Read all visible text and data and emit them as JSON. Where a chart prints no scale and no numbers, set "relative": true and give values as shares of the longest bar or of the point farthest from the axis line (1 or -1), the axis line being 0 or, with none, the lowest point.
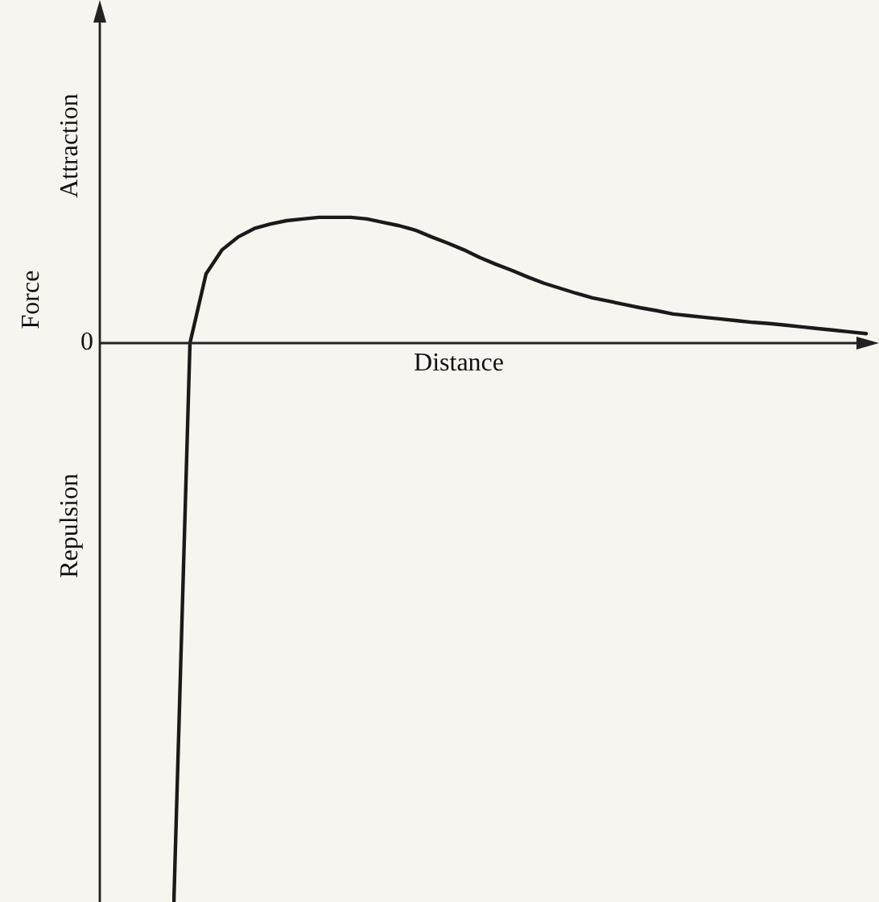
{
  "chart_data": {
    "type": "line",
    "relative": true,
    "xlabel": "Distance",
    "ylabel": "Force",
    "annotations": [
      "Attraction",
      "Repulsion",
      "0"
    ],
    "categories": [
      null,
      null,
      null,
      null,
      null,
      null,
      null,
      null,
      null,
      null,
      null,
      null,
      null,
      null,
      null,
      null,
      null,
      null,
      null,
      null,
      null,
      null,
      null,
      null,
      null,
      null,
      null,
      null,
      null,
      null,
      null,
      null,
      null,
      null,
      null,
      null,
      null,
      null,
      null,
      null,
      null,
      null,
      null,
      null
    ],
    "marker": "none",
    "line_style": "solid",
    "series": [
      {
        "color": "#1a1a1a",
        "values": [
          -1,
          0,
          0.124,
          0.167,
          0.19,
          0.205,
          0.213,
          0.219,
          0.222,
          0.225,
          0.225,
          0.225,
          0.222,
          0.216,
          0.21,
          0.202,
          0.19,
          0.179,
          0.167,
          0.153,
          0.141,
          0.13,
          0.118,
          0.107,
          0.098,
          0.089,
          0.081,
          0.075,
          0.069,
          0.063,
          0.058,
          0.052,
          0.049,
          0.046,
          0.043,
          0.04,
          0.037,
          0.035,
          0.032,
          0.029,
          0.026,
          0.023,
          0.02,
          0.017
        ]
      }
    ]
  }
}
